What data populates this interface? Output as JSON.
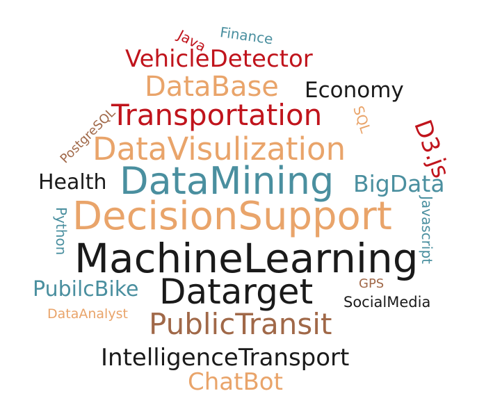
{
  "colors": {
    "red": "#c0141c",
    "orange": "#e9a46a",
    "teal": "#4a8f9f",
    "brown": "#a06848",
    "black": "#1a1a1a"
  },
  "words": {
    "java": "Java",
    "finance": "Finance",
    "vehicle_detector": "VehicleDetector",
    "database": "DataBase",
    "economy": "Economy",
    "transportation": "Transportation",
    "sql": "SQL",
    "d3": "D3.js",
    "postgresql": "PostgreSQL",
    "datavisulization": "DataVisulization",
    "health": "Health",
    "datamining": "DataMining",
    "bigdata": "BigData",
    "python": "Python",
    "javascript": "Javascript",
    "decision_support": "DecisionSupport",
    "machine_learning": "MachineLearning",
    "gps": "GPS",
    "pubilc_bike": "PubilcBike",
    "datarget": "Datarget",
    "social_media": "SocialMedia",
    "data_analyst": "DataAnalyst",
    "public_transit": "PublicTransit",
    "intelligence_transport": "IntelligenceTransport",
    "chatbot": "ChatBot"
  }
}
